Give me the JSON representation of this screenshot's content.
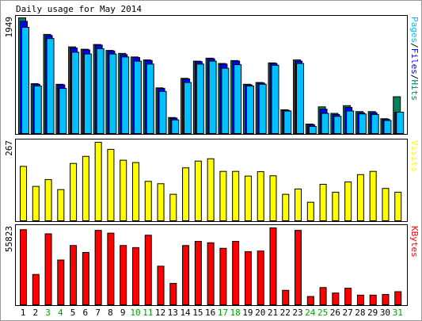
{
  "title": "Daily usage for May 2014",
  "colors": {
    "background": "#ffffff",
    "hits": "#00805c",
    "files": "#0000ff",
    "pages": "#00c0ff",
    "visits": "#ffff00",
    "kbytes": "#ff0000",
    "weekend_label": "#00a000",
    "weekday_label": "#000000"
  },
  "chart_data": [
    {
      "type": "bar",
      "title": "Daily usage for May 2014",
      "categories": [
        "1",
        "2",
        "3",
        "4",
        "5",
        "6",
        "7",
        "8",
        "9",
        "10",
        "11",
        "12",
        "13",
        "14",
        "15",
        "16",
        "17",
        "18",
        "19",
        "20",
        "21",
        "22",
        "23",
        "24",
        "25",
        "26",
        "27",
        "28",
        "29",
        "30",
        "31"
      ],
      "weekend_days": [
        "3",
        "4",
        "10",
        "11",
        "17",
        "18",
        "24",
        "25",
        "31"
      ],
      "y_max_label": "1949",
      "ylim": [
        0,
        1949
      ],
      "legend": [
        "Pages",
        "/",
        "Files",
        "/",
        "Hits"
      ],
      "legend_placement": "right",
      "series": [
        {
          "name": "Hits",
          "values": [
            1949,
            840,
            1670,
            830,
            1460,
            1420,
            1500,
            1400,
            1350,
            1290,
            1240,
            770,
            270,
            930,
            1220,
            1270,
            1180,
            1230,
            830,
            860,
            1190,
            400,
            1240,
            160,
            450,
            340,
            470,
            370,
            370,
            250,
            620
          ]
        },
        {
          "name": "Files",
          "values": [
            1890,
            830,
            1650,
            820,
            1440,
            1410,
            1490,
            1390,
            1330,
            1280,
            1230,
            760,
            260,
            920,
            1210,
            1260,
            1170,
            1220,
            820,
            850,
            1180,
            390,
            1220,
            150,
            410,
            320,
            440,
            350,
            350,
            240,
            360
          ]
        },
        {
          "name": "Pages",
          "values": [
            1790,
            800,
            1600,
            760,
            1370,
            1340,
            1430,
            1340,
            1290,
            1220,
            1170,
            710,
            230,
            860,
            1170,
            1220,
            1100,
            1160,
            800,
            830,
            1150,
            380,
            1180,
            120,
            340,
            290,
            380,
            330,
            320,
            220,
            360
          ]
        }
      ]
    },
    {
      "type": "bar",
      "categories": [
        "1",
        "2",
        "3",
        "4",
        "5",
        "6",
        "7",
        "8",
        "9",
        "10",
        "11",
        "12",
        "13",
        "14",
        "15",
        "16",
        "17",
        "18",
        "19",
        "20",
        "21",
        "22",
        "23",
        "24",
        "25",
        "26",
        "27",
        "28",
        "29",
        "30",
        "31"
      ],
      "y_max_label": "267",
      "ylim": [
        0,
        267
      ],
      "legend": [
        "Visits"
      ],
      "legend_placement": "right",
      "series": [
        {
          "name": "Visits",
          "values": [
            185,
            117,
            140,
            106,
            195,
            219,
            267,
            243,
            206,
            198,
            134,
            126,
            90,
            180,
            203,
            211,
            168,
            168,
            152,
            167,
            153,
            90,
            108,
            63,
            124,
            97,
            132,
            157,
            168,
            110,
            97
          ]
        }
      ]
    },
    {
      "type": "bar",
      "categories": [
        "1",
        "2",
        "3",
        "4",
        "5",
        "6",
        "7",
        "8",
        "9",
        "10",
        "11",
        "12",
        "13",
        "14",
        "15",
        "16",
        "17",
        "18",
        "19",
        "20",
        "21",
        "22",
        "23",
        "24",
        "25",
        "26",
        "27",
        "28",
        "29",
        "30",
        "31"
      ],
      "y_max_label": "55823",
      "ylim": [
        0,
        55823
      ],
      "legend": [
        "KBytes"
      ],
      "legend_placement": "right",
      "series": [
        {
          "name": "KBytes",
          "values": [
            54500,
            22000,
            51500,
            32500,
            43000,
            38000,
            54000,
            52000,
            43000,
            41500,
            50500,
            28000,
            15500,
            43000,
            46000,
            45000,
            41000,
            46000,
            38500,
            39000,
            55823,
            10500,
            54000,
            6000,
            12500,
            8500,
            12000,
            7000,
            7000,
            7500,
            9500
          ]
        }
      ]
    }
  ]
}
